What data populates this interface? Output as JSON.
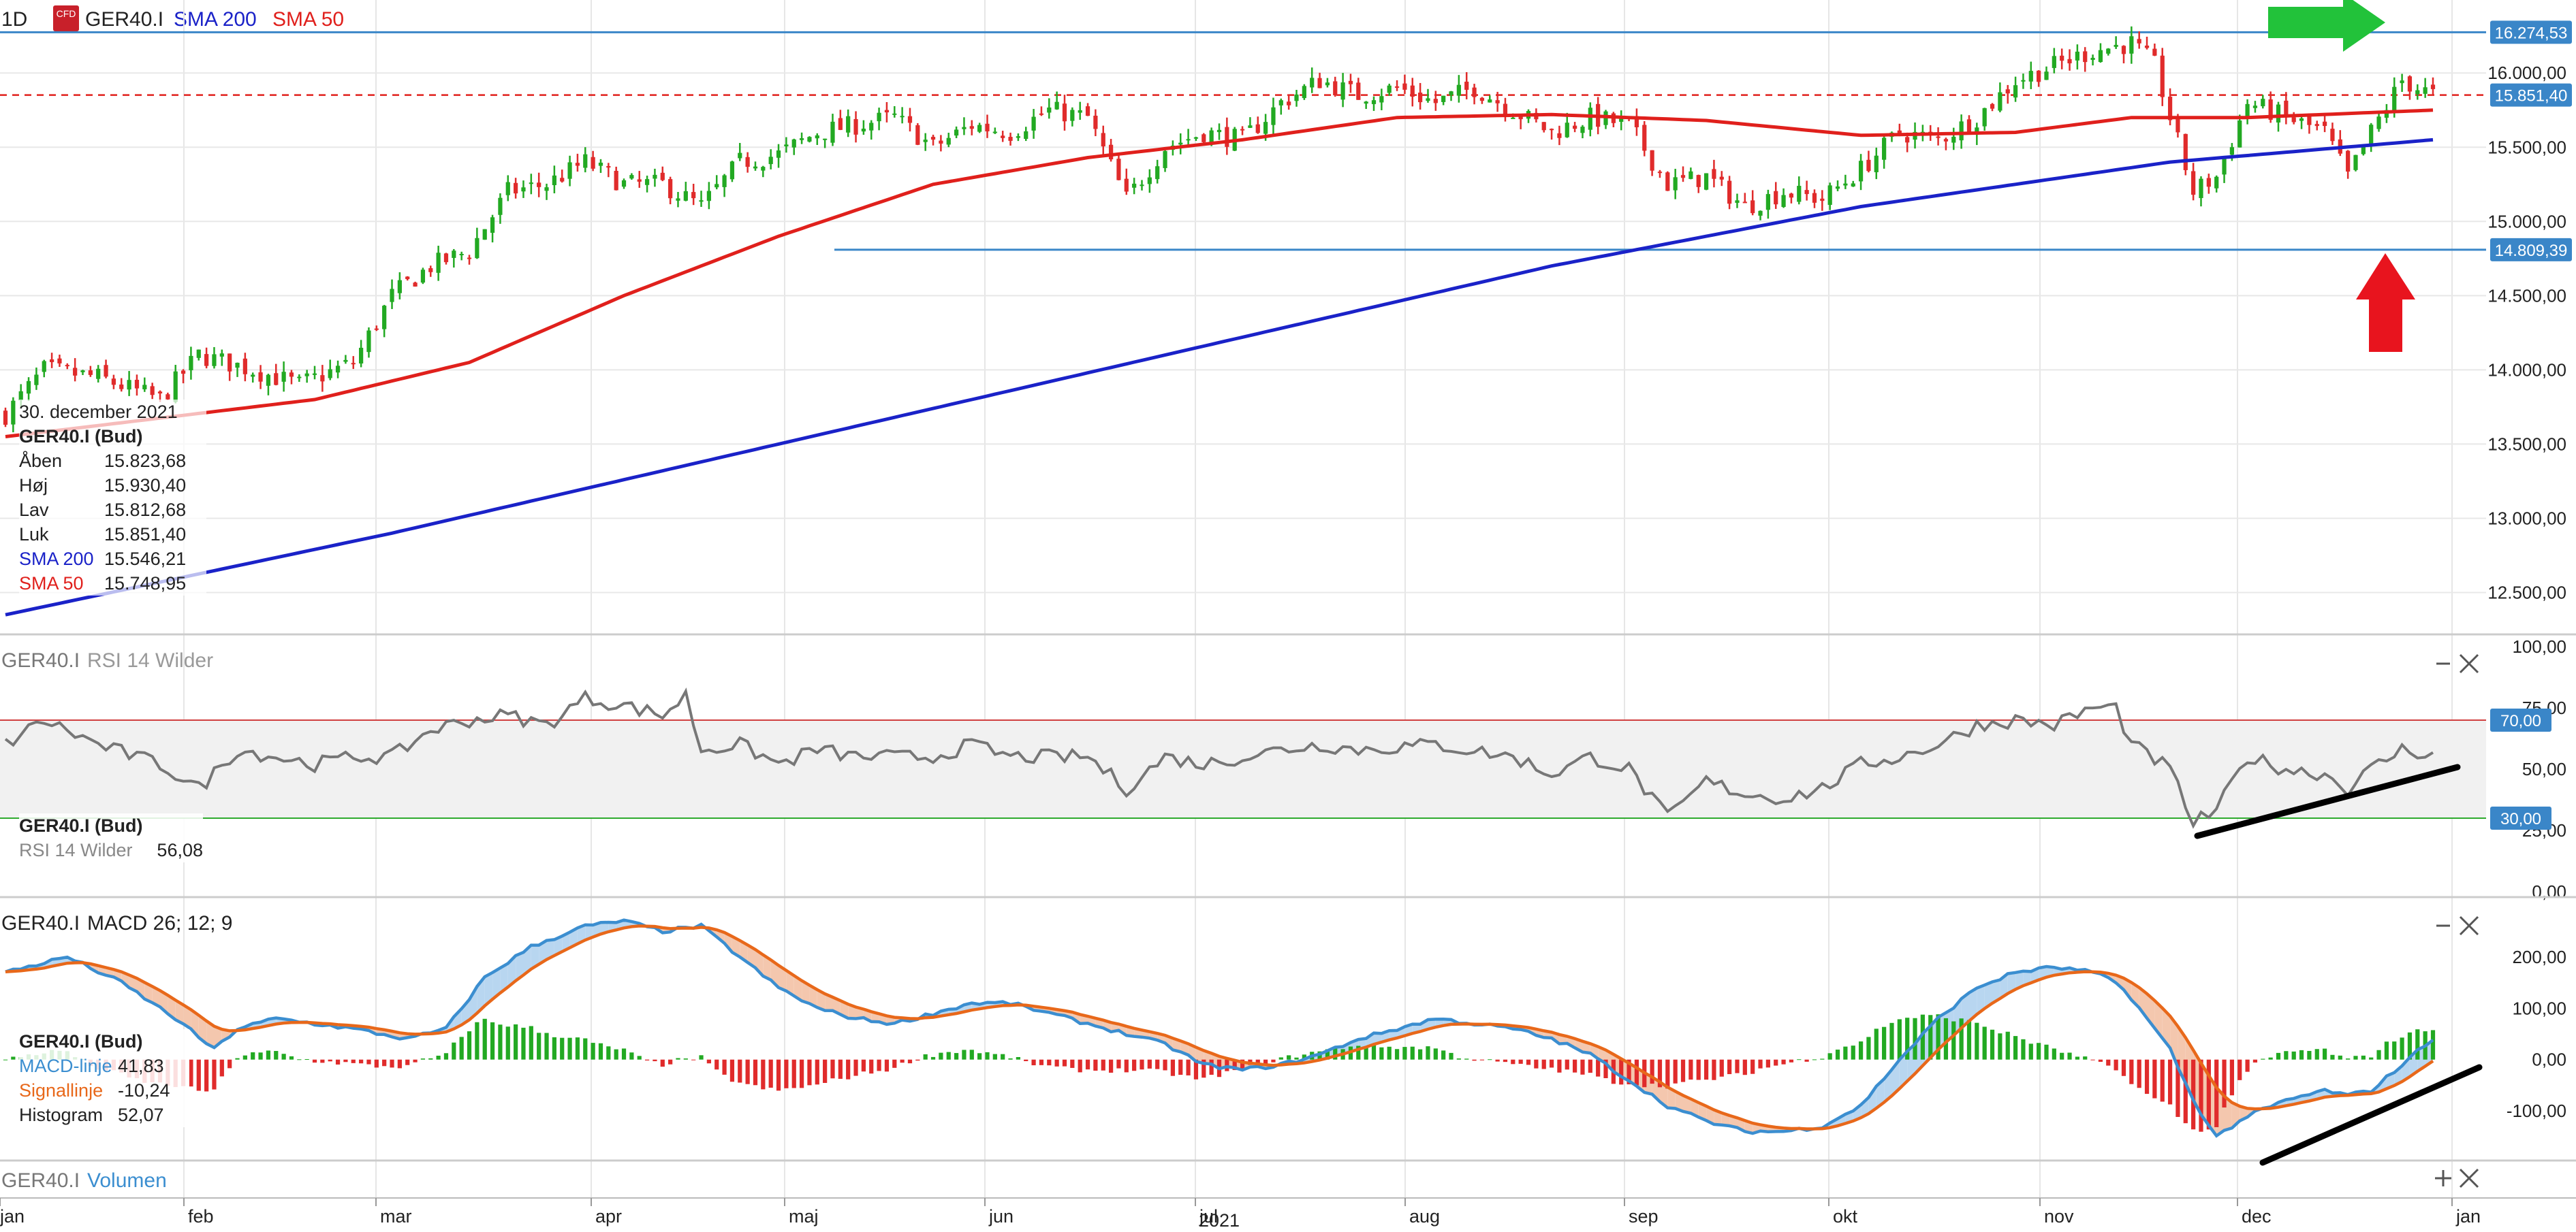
{
  "header": {
    "timeframe": "1D",
    "instrument": "GER40.I",
    "badge": "CFD",
    "indicator_1": "SMA 200",
    "indicator_2": "SMA 50"
  },
  "colors": {
    "up": "#22a922",
    "down": "#e02b2b",
    "sma200": "#1a22c8",
    "sma50": "#e0201c",
    "rsi": "#777777",
    "macd": "#3b8ed0",
    "signal": "#e8681a",
    "level": "#3a86c8",
    "arrow_up": "#e8141e",
    "arrow_right": "#22c23a"
  },
  "price_panel": {
    "y_ticks": [
      "16.000,00",
      "15.500,00",
      "15.000,00",
      "14.500,00",
      "14.000,00",
      "13.500,00",
      "13.000,00",
      "12.500,00"
    ],
    "tags": [
      {
        "label": "16.274,53",
        "value": 16274.53
      },
      {
        "label": "15.851,40",
        "value": 15851.4
      },
      {
        "label": "14.809,39",
        "value": 14809.39
      }
    ],
    "legend": {
      "date": "30. december 2021",
      "title": "GER40.I (Bud)",
      "rows": [
        {
          "k": "Åben",
          "v": "15.823,68"
        },
        {
          "k": "Høj",
          "v": "15.930,40"
        },
        {
          "k": "Lav",
          "v": "15.812,68"
        },
        {
          "k": "Luk",
          "v": "15.851,40"
        },
        {
          "k": "SMA 200",
          "v": "15.546,21"
        },
        {
          "k": "SMA 50",
          "v": "15.748,95"
        }
      ]
    }
  },
  "rsi_panel": {
    "title_instr": "GER40.I",
    "title_ind": "RSI 14 Wilder",
    "y_ticks": [
      "100,00",
      "75,00",
      "50,00",
      "25,00",
      "0,00"
    ],
    "tag_upper": "70,00",
    "tag_lower": "30,00",
    "legend_title": "GER40.I (Bud)",
    "legend_key": "RSI 14 Wilder",
    "legend_val": "56,08"
  },
  "macd_panel": {
    "title_instr": "GER40.I",
    "title_ind": "MACD 26; 12; 9",
    "y_ticks": [
      "200,00",
      "100,00",
      "0,00",
      "-100,00"
    ],
    "legend_title": "GER40.I (Bud)",
    "rows": [
      {
        "k": "MACD-linje",
        "v": "41,83"
      },
      {
        "k": "Signallinje",
        "v": "-10,24"
      },
      {
        "k": "Histogram",
        "v": "52,07"
      }
    ]
  },
  "volume_panel": {
    "title_instr": "GER40.I",
    "title_ind": "Volumen"
  },
  "x_axis": {
    "months": [
      "jan",
      "feb",
      "mar",
      "apr",
      "maj",
      "jun",
      "jul",
      "aug",
      "sep",
      "okt",
      "nov",
      "dec",
      "jan"
    ],
    "year": "2021"
  },
  "chart_data": {
    "type": "candlestick",
    "x_unit": "trading day index (2021)",
    "price_ylim": [
      12250,
      16400
    ],
    "levels": [
      16274.53,
      15851.4,
      14809.39
    ],
    "close_anchors": [
      [
        0,
        13700
      ],
      [
        5,
        14000
      ],
      [
        12,
        13950
      ],
      [
        20,
        13800
      ],
      [
        25,
        14100
      ],
      [
        32,
        14000
      ],
      [
        38,
        13900
      ],
      [
        45,
        14050
      ],
      [
        50,
        14500
      ],
      [
        55,
        14700
      ],
      [
        60,
        14800
      ],
      [
        65,
        15200
      ],
      [
        70,
        15250
      ],
      [
        75,
        15400
      ],
      [
        80,
        15250
      ],
      [
        85,
        15250
      ],
      [
        90,
        15100
      ],
      [
        95,
        15400
      ],
      [
        100,
        15450
      ],
      [
        105,
        15600
      ],
      [
        110,
        15650
      ],
      [
        115,
        15700
      ],
      [
        120,
        15500
      ],
      [
        125,
        15650
      ],
      [
        130,
        15600
      ],
      [
        135,
        15750
      ],
      [
        140,
        15700
      ],
      [
        145,
        15150
      ],
      [
        150,
        15500
      ],
      [
        155,
        15600
      ],
      [
        160,
        15550
      ],
      [
        165,
        15800
      ],
      [
        170,
        15950
      ],
      [
        175,
        15850
      ],
      [
        180,
        15900
      ],
      [
        185,
        15800
      ],
      [
        190,
        15900
      ],
      [
        195,
        15750
      ],
      [
        200,
        15600
      ],
      [
        205,
        15700
      ],
      [
        210,
        15650
      ],
      [
        215,
        15250
      ],
      [
        220,
        15300
      ],
      [
        225,
        15100
      ],
      [
        230,
        15200
      ],
      [
        235,
        15150
      ],
      [
        240,
        15350
      ],
      [
        245,
        15600
      ],
      [
        250,
        15550
      ],
      [
        255,
        15700
      ],
      [
        260,
        15950
      ],
      [
        265,
        16050
      ],
      [
        270,
        16150
      ],
      [
        275,
        16200
      ],
      [
        278,
        16050
      ],
      [
        280,
        15700
      ],
      [
        283,
        15200
      ],
      [
        286,
        15300
      ],
      [
        290,
        15800
      ],
      [
        295,
        15700
      ],
      [
        300,
        15600
      ],
      [
        303,
        15300
      ],
      [
        306,
        15600
      ],
      [
        310,
        15950
      ],
      [
        314,
        15850
      ]
    ],
    "sma50_anchors": [
      [
        0,
        13550
      ],
      [
        40,
        13800
      ],
      [
        60,
        14050
      ],
      [
        80,
        14500
      ],
      [
        100,
        14900
      ],
      [
        120,
        15250
      ],
      [
        140,
        15430
      ],
      [
        160,
        15550
      ],
      [
        180,
        15700
      ],
      [
        200,
        15720
      ],
      [
        220,
        15680
      ],
      [
        240,
        15580
      ],
      [
        260,
        15600
      ],
      [
        275,
        15700
      ],
      [
        290,
        15700
      ],
      [
        314,
        15750
      ]
    ],
    "sma200_anchors": [
      [
        0,
        12350
      ],
      [
        50,
        12900
      ],
      [
        100,
        13500
      ],
      [
        150,
        14100
      ],
      [
        200,
        14700
      ],
      [
        240,
        15100
      ],
      [
        280,
        15400
      ],
      [
        314,
        15550
      ]
    ],
    "rsi_anchors": [
      [
        0,
        60
      ],
      [
        5,
        70
      ],
      [
        12,
        60
      ],
      [
        20,
        52
      ],
      [
        25,
        42
      ],
      [
        30,
        58
      ],
      [
        40,
        52
      ],
      [
        45,
        55
      ],
      [
        50,
        55
      ],
      [
        55,
        66
      ],
      [
        60,
        70
      ],
      [
        65,
        72
      ],
      [
        70,
        68
      ],
      [
        75,
        79
      ],
      [
        80,
        76
      ],
      [
        85,
        72
      ],
      [
        88,
        80
      ],
      [
        90,
        58
      ],
      [
        95,
        60
      ],
      [
        100,
        52
      ],
      [
        105,
        58
      ],
      [
        110,
        55
      ],
      [
        120,
        55
      ],
      [
        125,
        60
      ],
      [
        130,
        55
      ],
      [
        140,
        55
      ],
      [
        145,
        42
      ],
      [
        150,
        55
      ],
      [
        155,
        52
      ],
      [
        165,
        58
      ],
      [
        170,
        60
      ],
      [
        175,
        58
      ],
      [
        185,
        60
      ],
      [
        195,
        55
      ],
      [
        200,
        48
      ],
      [
        205,
        55
      ],
      [
        210,
        50
      ],
      [
        215,
        30
      ],
      [
        220,
        45
      ],
      [
        225,
        40
      ],
      [
        230,
        38
      ],
      [
        235,
        42
      ],
      [
        240,
        52
      ],
      [
        245,
        55
      ],
      [
        250,
        60
      ],
      [
        255,
        68
      ],
      [
        260,
        70
      ],
      [
        265,
        68
      ],
      [
        270,
        75
      ],
      [
        273,
        75
      ],
      [
        275,
        60
      ],
      [
        280,
        50
      ],
      [
        283,
        28
      ],
      [
        286,
        33
      ],
      [
        290,
        55
      ],
      [
        295,
        50
      ],
      [
        300,
        48
      ],
      [
        303,
        42
      ],
      [
        306,
        50
      ],
      [
        310,
        58
      ],
      [
        314,
        56
      ]
    ],
    "macd_anchors": [
      [
        0,
        170
      ],
      [
        8,
        200
      ],
      [
        15,
        150
      ],
      [
        22,
        80
      ],
      [
        27,
        20
      ],
      [
        30,
        60
      ],
      [
        35,
        80
      ],
      [
        45,
        60
      ],
      [
        52,
        40
      ],
      [
        57,
        60
      ],
      [
        62,
        160
      ],
      [
        68,
        220
      ],
      [
        75,
        260
      ],
      [
        80,
        270
      ],
      [
        85,
        250
      ],
      [
        90,
        260
      ],
      [
        95,
        200
      ],
      [
        100,
        140
      ],
      [
        105,
        100
      ],
      [
        110,
        80
      ],
      [
        115,
        70
      ],
      [
        120,
        90
      ],
      [
        125,
        110
      ],
      [
        130,
        110
      ],
      [
        135,
        90
      ],
      [
        140,
        70
      ],
      [
        145,
        50
      ],
      [
        150,
        30
      ],
      [
        155,
        -10
      ],
      [
        160,
        -20
      ],
      [
        165,
        -10
      ],
      [
        170,
        10
      ],
      [
        175,
        40
      ],
      [
        180,
        60
      ],
      [
        185,
        80
      ],
      [
        190,
        70
      ],
      [
        195,
        60
      ],
      [
        200,
        40
      ],
      [
        205,
        10
      ],
      [
        210,
        -40
      ],
      [
        215,
        -90
      ],
      [
        220,
        -120
      ],
      [
        225,
        -140
      ],
      [
        230,
        -140
      ],
      [
        235,
        -130
      ],
      [
        240,
        -90
      ],
      [
        245,
        0
      ],
      [
        250,
        80
      ],
      [
        255,
        140
      ],
      [
        260,
        170
      ],
      [
        265,
        180
      ],
      [
        270,
        170
      ],
      [
        273,
        150
      ],
      [
        275,
        120
      ],
      [
        280,
        20
      ],
      [
        283,
        -80
      ],
      [
        286,
        -150
      ],
      [
        290,
        -110
      ],
      [
        295,
        -80
      ],
      [
        300,
        -60
      ],
      [
        303,
        -70
      ],
      [
        306,
        -60
      ],
      [
        310,
        -10
      ],
      [
        314,
        42
      ]
    ],
    "signal_span": 9,
    "macd_ylim": [
      -190,
      290
    ],
    "rsi_ylim": [
      0,
      100
    ],
    "rsi_levels": [
      70,
      30
    ],
    "n_days": 315
  }
}
